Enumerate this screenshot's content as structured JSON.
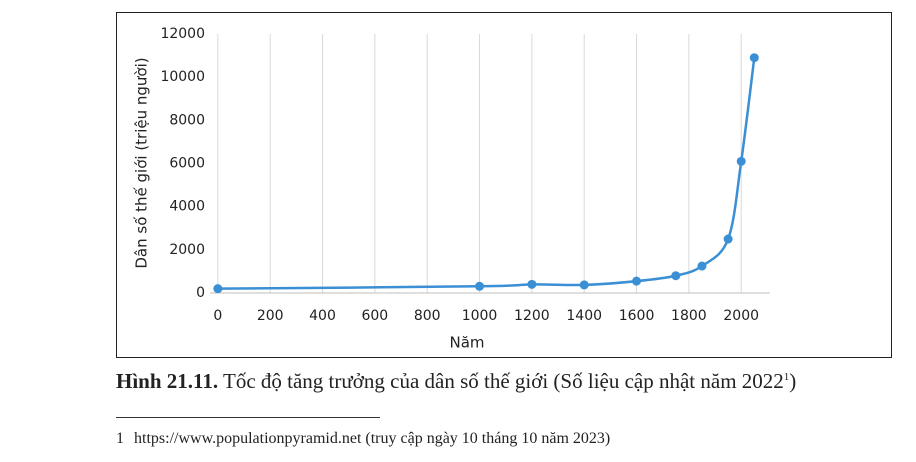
{
  "chart_data": {
    "type": "line",
    "y_label": "Dân số thế giới (triệu người)",
    "x_label": "Năm",
    "x": [
      0,
      1000,
      1200,
      1400,
      1600,
      1750,
      1850,
      1950,
      2000,
      2050
    ],
    "values": [
      200,
      310,
      400,
      375,
      550,
      800,
      1250,
      2500,
      6100,
      10900
    ],
    "color": "#3b8fd4",
    "xlim": [
      -30,
      2110
    ],
    "xticks": [
      0,
      200,
      400,
      600,
      800,
      1000,
      1200,
      1400,
      1600,
      1800,
      2000
    ],
    "ylim": [
      0,
      12000
    ],
    "yticks": [
      0,
      2000,
      4000,
      6000,
      8000,
      10000,
      12000
    ],
    "grid": true
  },
  "caption": {
    "label": "Hình 21.11.",
    "text": "Tốc độ tăng trưởng của dân số thế giới (Số liệu cập nhật năm 2022",
    "ref": "1",
    "close": ")"
  },
  "footnote": {
    "number": "1",
    "text": "https://www.populationpyramid.net (truy cập ngày 10 tháng 10 năm 2023)"
  }
}
